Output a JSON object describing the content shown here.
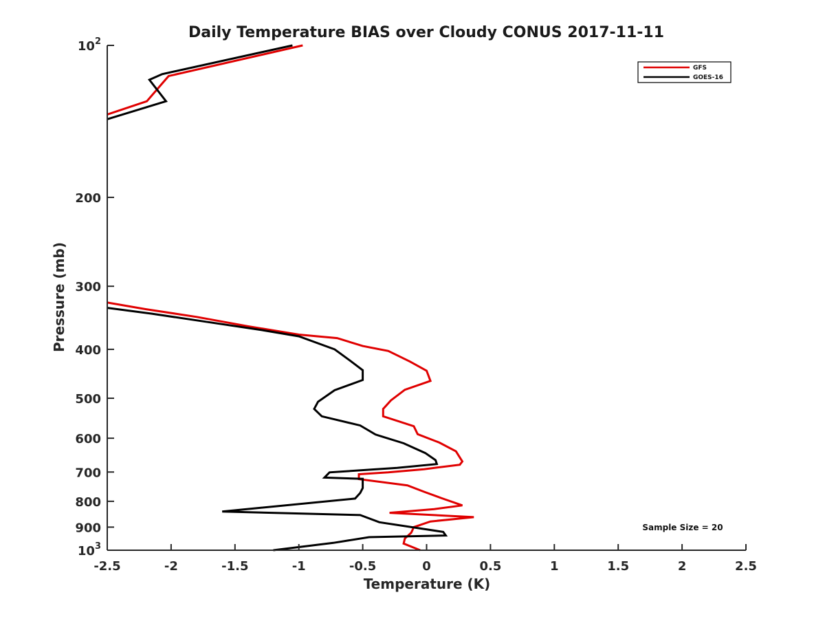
{
  "chart_data": {
    "type": "line",
    "title": "Daily Temperature BIAS over Cloudy CONUS 2017-11-11",
    "xlabel": "Temperature (K)",
    "ylabel": "Pressure (mb)",
    "xlim": [
      -2.5,
      2.5
    ],
    "ylim": [
      100,
      1000
    ],
    "y_scale": "log",
    "y_reversed": true,
    "grid": false,
    "legend_position": "top-right",
    "x_ticks": [
      "-2.5",
      "-2",
      "-1.5",
      "-1",
      "-0.5",
      "0",
      "0.5",
      "1",
      "1.5",
      "2",
      "2.5"
    ],
    "y_ticks": [
      {
        "value": 100,
        "base": "10",
        "exp": "2"
      },
      {
        "value": 200,
        "label": "200"
      },
      {
        "value": 300,
        "label": "300"
      },
      {
        "value": 400,
        "label": "400"
      },
      {
        "value": 500,
        "label": "500"
      },
      {
        "value": 600,
        "label": "600"
      },
      {
        "value": 700,
        "label": "700"
      },
      {
        "value": 800,
        "label": "800"
      },
      {
        "value": 900,
        "label": "900"
      },
      {
        "value": 1000,
        "base": "10",
        "exp": "3"
      }
    ],
    "annotation": "Sample Size = 20",
    "series": [
      {
        "name": "GFS",
        "color": "#e00000",
        "segments": [
          [
            {
              "x": -0.97,
              "p": 100
            },
            {
              "x": -2.02,
              "p": 115
            },
            {
              "x": -2.19,
              "p": 129
            },
            {
              "x": -2.5,
              "p": 137
            }
          ],
          [
            {
              "x": -2.5,
              "p": 323
            },
            {
              "x": -2.2,
              "p": 333
            },
            {
              "x": -1.8,
              "p": 345
            },
            {
              "x": -1.4,
              "p": 360
            },
            {
              "x": -1.0,
              "p": 374
            },
            {
              "x": -0.7,
              "p": 380
            },
            {
              "x": -0.5,
              "p": 394
            },
            {
              "x": -0.3,
              "p": 403
            },
            {
              "x": -0.13,
              "p": 423
            },
            {
              "x": 0.0,
              "p": 441
            },
            {
              "x": 0.03,
              "p": 462
            },
            {
              "x": -0.17,
              "p": 481
            },
            {
              "x": -0.28,
              "p": 505
            },
            {
              "x": -0.34,
              "p": 525
            },
            {
              "x": -0.34,
              "p": 543
            },
            {
              "x": -0.1,
              "p": 568
            },
            {
              "x": -0.07,
              "p": 589
            },
            {
              "x": 0.1,
              "p": 612
            },
            {
              "x": 0.23,
              "p": 637
            },
            {
              "x": 0.28,
              "p": 667
            },
            {
              "x": 0.26,
              "p": 677
            },
            {
              "x": -0.02,
              "p": 691
            },
            {
              "x": -0.3,
              "p": 701
            },
            {
              "x": -0.53,
              "p": 707
            },
            {
              "x": -0.53,
              "p": 723
            },
            {
              "x": -0.15,
              "p": 744
            },
            {
              "x": -0.02,
              "p": 766
            },
            {
              "x": 0.12,
              "p": 789
            },
            {
              "x": 0.28,
              "p": 815
            },
            {
              "x": 0.06,
              "p": 829
            },
            {
              "x": -0.29,
              "p": 843
            },
            {
              "x": 0.37,
              "p": 860
            },
            {
              "x": 0.03,
              "p": 877
            },
            {
              "x": -0.1,
              "p": 900
            },
            {
              "x": -0.12,
              "p": 923
            },
            {
              "x": -0.17,
              "p": 948
            },
            {
              "x": -0.18,
              "p": 970
            },
            {
              "x": -0.05,
              "p": 1000
            }
          ]
        ]
      },
      {
        "name": "GOES-16",
        "color": "#000000",
        "segments": [
          [
            {
              "x": -1.05,
              "p": 100
            },
            {
              "x": -2.07,
              "p": 114
            },
            {
              "x": -2.17,
              "p": 117
            },
            {
              "x": -2.04,
              "p": 129
            },
            {
              "x": -2.5,
              "p": 140
            }
          ],
          [
            {
              "x": -2.5,
              "p": 331
            },
            {
              "x": -2.15,
              "p": 340
            },
            {
              "x": -1.75,
              "p": 352
            },
            {
              "x": -1.3,
              "p": 366
            },
            {
              "x": -1.0,
              "p": 377
            },
            {
              "x": -0.72,
              "p": 400
            },
            {
              "x": -0.6,
              "p": 421
            },
            {
              "x": -0.5,
              "p": 440
            },
            {
              "x": -0.5,
              "p": 460
            },
            {
              "x": -0.72,
              "p": 482
            },
            {
              "x": -0.85,
              "p": 508
            },
            {
              "x": -0.88,
              "p": 525
            },
            {
              "x": -0.82,
              "p": 543
            },
            {
              "x": -0.52,
              "p": 566
            },
            {
              "x": -0.4,
              "p": 590
            },
            {
              "x": -0.18,
              "p": 614
            },
            {
              "x": -0.01,
              "p": 642
            },
            {
              "x": 0.07,
              "p": 663
            },
            {
              "x": 0.08,
              "p": 675
            },
            {
              "x": -0.23,
              "p": 687
            },
            {
              "x": -0.76,
              "p": 701
            },
            {
              "x": -0.8,
              "p": 718
            },
            {
              "x": -0.5,
              "p": 722
            },
            {
              "x": -0.5,
              "p": 753
            },
            {
              "x": -0.52,
              "p": 770
            },
            {
              "x": -0.56,
              "p": 790
            },
            {
              "x": -1.6,
              "p": 838
            },
            {
              "x": -0.52,
              "p": 852
            },
            {
              "x": -0.37,
              "p": 880
            },
            {
              "x": 0.13,
              "p": 920
            },
            {
              "x": 0.15,
              "p": 935
            },
            {
              "x": -0.45,
              "p": 942
            },
            {
              "x": -0.73,
              "p": 967
            },
            {
              "x": -1.2,
              "p": 1000
            }
          ]
        ]
      }
    ]
  }
}
